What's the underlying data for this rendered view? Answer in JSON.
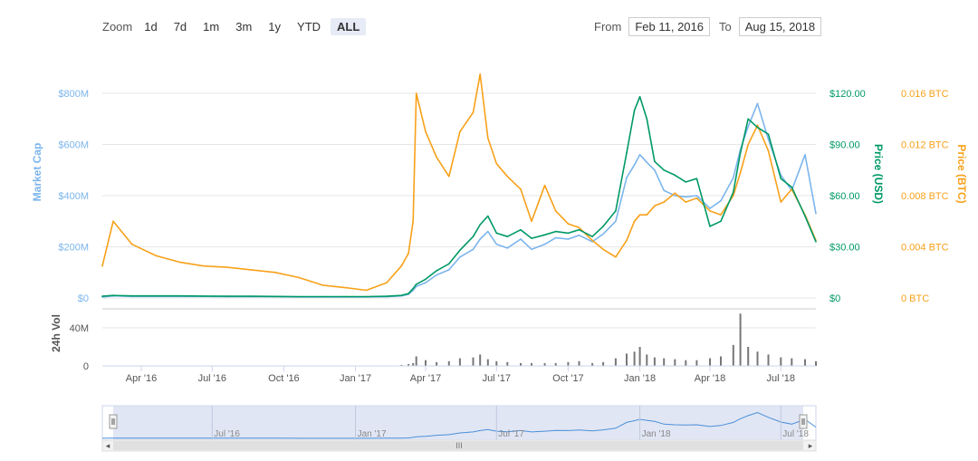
{
  "toolbar": {
    "zoom_label": "Zoom",
    "zoom_buttons": [
      "1d",
      "7d",
      "1m",
      "3m",
      "1y",
      "YTD",
      "ALL"
    ],
    "active_zoom": "ALL",
    "from_label": "From",
    "from_value": "Feb 11, 2016",
    "to_label": "To",
    "to_value": "Aug 15, 2018"
  },
  "colors": {
    "market_cap": "#7cb5ec",
    "price_usd": "#009966",
    "price_btc": "#f7a11a",
    "volume": "#777777",
    "navigator_fill": "#d4dcf0",
    "navigator_line": "#4a90d9"
  },
  "chart_data": {
    "type": "line",
    "x_range": [
      "2016-02-11",
      "2018-08-15"
    ],
    "x_ticks": [
      "Apr '16",
      "Jul '16",
      "Oct '16",
      "Jan '17",
      "Apr '17",
      "Jul '17",
      "Oct '17",
      "Jan '18",
      "Apr '18",
      "Jul '18"
    ],
    "y_axes": [
      {
        "label": "Market Cap",
        "ticks": [
          "$0",
          "$200M",
          "$400M",
          "$600M",
          "$800M"
        ],
        "range": [
          0,
          800
        ]
      },
      {
        "label": "Price (USD)",
        "ticks": [
          "$0",
          "$30.00",
          "$60.00",
          "$90.00",
          "$120.00"
        ],
        "range": [
          0,
          120
        ]
      },
      {
        "label": "Price (BTC)",
        "ticks": [
          "0 BTC",
          "0.004 BTC",
          "0.008 BTC",
          "0.012 BTC",
          "0.016 BTC"
        ],
        "range": [
          0,
          0.016
        ]
      },
      {
        "label": "24h Vol",
        "ticks": [
          "0",
          "40M"
        ],
        "range": [
          0,
          60
        ]
      }
    ],
    "x_dates": [
      "2016-02-11",
      "2016-02-25",
      "2016-03-20",
      "2016-04-20",
      "2016-05-20",
      "2016-06-20",
      "2016-07-20",
      "2016-08-20",
      "2016-09-20",
      "2016-10-20",
      "2016-11-20",
      "2016-12-20",
      "2017-01-15",
      "2017-02-10",
      "2017-03-01",
      "2017-03-10",
      "2017-03-16",
      "2017-03-20",
      "2017-04-01",
      "2017-04-15",
      "2017-05-01",
      "2017-05-15",
      "2017-06-01",
      "2017-06-10",
      "2017-06-20",
      "2017-07-01",
      "2017-07-15",
      "2017-08-01",
      "2017-08-15",
      "2017-09-01",
      "2017-09-15",
      "2017-10-01",
      "2017-10-15",
      "2017-11-01",
      "2017-11-15",
      "2017-12-01",
      "2017-12-15",
      "2017-12-25",
      "2018-01-01",
      "2018-01-10",
      "2018-01-20",
      "2018-02-01",
      "2018-02-15",
      "2018-03-01",
      "2018-03-15",
      "2018-04-01",
      "2018-04-15",
      "2018-05-01",
      "2018-05-10",
      "2018-05-20",
      "2018-06-01",
      "2018-06-15",
      "2018-07-01",
      "2018-07-15",
      "2018-08-01",
      "2018-08-15"
    ],
    "series": [
      {
        "name": "Market Cap",
        "axis": 0,
        "values": [
          4,
          8,
          6,
          6,
          6,
          6,
          5,
          5,
          5,
          4,
          4,
          4,
          4,
          5,
          8,
          14,
          30,
          45,
          60,
          90,
          110,
          160,
          190,
          230,
          260,
          210,
          195,
          230,
          190,
          210,
          235,
          230,
          245,
          220,
          250,
          300,
          470,
          520,
          560,
          530,
          500,
          420,
          400,
          395,
          400,
          350,
          380,
          470,
          580,
          670,
          760,
          620,
          480,
          420,
          560,
          330
        ]
      },
      {
        "name": "Price (USD)",
        "axis": 1,
        "values": [
          1,
          1.5,
          1.2,
          1.2,
          1.2,
          1.1,
          1,
          1,
          0.9,
          0.8,
          0.8,
          0.8,
          0.8,
          1,
          1.5,
          2.6,
          5.5,
          8,
          11,
          16,
          20,
          28,
          36,
          43,
          48,
          38,
          36,
          40,
          35,
          37,
          39,
          38,
          40,
          36,
          42,
          51,
          85,
          110,
          118,
          105,
          80,
          75,
          72,
          68,
          70,
          42,
          45,
          62,
          85,
          105,
          100,
          96,
          70,
          65,
          48,
          33
        ]
      },
      {
        "name": "Price (BTC)",
        "axis": 2,
        "values": [
          0.0025,
          0.006,
          0.0042,
          0.0033,
          0.0028,
          0.0025,
          0.0024,
          0.0022,
          0.002,
          0.0016,
          0.001,
          0.0008,
          0.0006,
          0.0012,
          0.0025,
          0.0035,
          0.006,
          0.016,
          0.013,
          0.011,
          0.0095,
          0.013,
          0.0145,
          0.0175,
          0.0125,
          0.0105,
          0.0095,
          0.0085,
          0.006,
          0.0088,
          0.0068,
          0.0058,
          0.0055,
          0.0045,
          0.0038,
          0.0032,
          0.0045,
          0.006,
          0.0065,
          0.0065,
          0.0072,
          0.0075,
          0.0082,
          0.0075,
          0.0078,
          0.0068,
          0.0065,
          0.008,
          0.0098,
          0.012,
          0.0135,
          0.0115,
          0.0075,
          0.0085,
          0.0065,
          0.0045
        ]
      },
      {
        "name": "24h Vol",
        "axis": 3,
        "values": [
          0,
          0,
          0,
          0,
          0,
          0,
          0,
          0,
          0,
          0,
          0,
          0,
          0,
          0,
          1,
          2,
          3,
          10,
          6,
          4,
          5,
          8,
          9,
          12,
          7,
          5,
          4,
          3,
          3,
          3,
          3,
          4,
          5,
          3,
          4,
          8,
          13,
          15,
          20,
          12,
          9,
          8,
          7,
          6,
          6,
          8,
          10,
          22,
          55,
          20,
          15,
          12,
          9,
          8,
          7,
          5
        ]
      }
    ],
    "navigator_ticks": [
      "Jul '16",
      "Jan '17",
      "Jul '17",
      "Jan '18",
      "Jul '18"
    ],
    "legend": "none",
    "grid": true
  }
}
